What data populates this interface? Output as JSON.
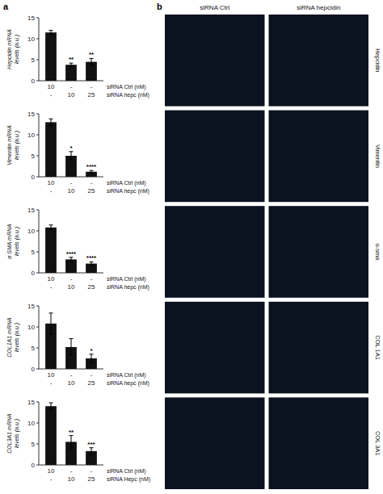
{
  "chart_data": [
    {
      "type": "bar",
      "ylabel": "Hepcidin mRNA\nlevels (a.u.)",
      "categories": [
        [
          "10",
          "-"
        ],
        [
          "-",
          "10"
        ],
        [
          "-",
          "25"
        ]
      ],
      "xlabel": [
        "siRNA Ctrl (nM)",
        "siRNA hepc (nM)"
      ],
      "values": [
        11.5,
        3.8,
        4.5
      ],
      "errors": [
        0.5,
        0.4,
        0.8
      ],
      "annotations": [
        null,
        "**",
        "**"
      ],
      "color": "#111111",
      "ylim": [
        0,
        15
      ],
      "yticks": [
        0,
        5,
        10,
        15
      ]
    },
    {
      "type": "bar",
      "ylabel": "Vimentin mRNA\nlevels (a.u.)",
      "categories": [
        [
          "10",
          "-"
        ],
        [
          "-",
          "10"
        ],
        [
          "-",
          "25"
        ]
      ],
      "xlabel": [
        "siRNA Ctrl (nM)",
        "siRNA hepc (nM)"
      ],
      "values": [
        13.0,
        5.0,
        1.2
      ],
      "errors": [
        0.8,
        1.0,
        0.3
      ],
      "annotations": [
        null,
        "*",
        "****"
      ],
      "color": "#111111",
      "ylim": [
        0,
        15
      ],
      "yticks": [
        0,
        5,
        10,
        15
      ]
    },
    {
      "type": "bar",
      "ylabel": "α SMA mRNA\nlevels (a.u.)",
      "categories": [
        [
          "10",
          "-"
        ],
        [
          "-",
          "10"
        ],
        [
          "-",
          "25"
        ]
      ],
      "xlabel": [
        "siRNA Ctrl (nM)",
        "siRNA hepc (nM)"
      ],
      "values": [
        10.8,
        3.2,
        2.2
      ],
      "errors": [
        0.6,
        0.5,
        0.4
      ],
      "annotations": [
        null,
        "****",
        "****"
      ],
      "color": "#111111",
      "ylim": [
        0,
        15
      ],
      "yticks": [
        0,
        5,
        10,
        15
      ]
    },
    {
      "type": "bar",
      "ylabel": "COL1A1 mRNA\nlevels (a.u.)",
      "categories": [
        [
          "10",
          "-"
        ],
        [
          "-",
          "10"
        ],
        [
          "-",
          "25"
        ]
      ],
      "xlabel": [
        "siRNA Ctrl (nM)",
        "siRNA hepc (nM)"
      ],
      "values": [
        10.8,
        5.2,
        2.5
      ],
      "errors": [
        2.5,
        2.0,
        1.0
      ],
      "annotations": [
        null,
        null,
        "*"
      ],
      "color": "#111111",
      "ylim": [
        0,
        15
      ],
      "yticks": [
        0,
        5,
        10,
        15
      ]
    },
    {
      "type": "bar",
      "ylabel": "COL3A1 mRNA\nlevels (a.u.)",
      "categories": [
        [
          "10",
          "-"
        ],
        [
          "-",
          "10"
        ],
        [
          "-",
          "25"
        ]
      ],
      "xlabel": [
        "siRNA Ctrl (nM)",
        "siRNA Hepc (nM)"
      ],
      "values": [
        14.0,
        5.5,
        3.3
      ],
      "errors": [
        0.8,
        1.5,
        0.8
      ],
      "annotations": [
        null,
        "**",
        "***"
      ],
      "color": "#111111",
      "ylim": [
        0,
        15
      ],
      "yticks": [
        0,
        5,
        10,
        15
      ]
    }
  ],
  "panel_labels": [
    "a",
    "b"
  ],
  "image_panel": {
    "column_headers": [
      "siRNA Ctrl",
      "siRNA hepcidin"
    ],
    "row_labels": [
      "Hepcidin",
      "Vimentin",
      "α-sma",
      "COL 1A1",
      "COL 3A1"
    ]
  }
}
